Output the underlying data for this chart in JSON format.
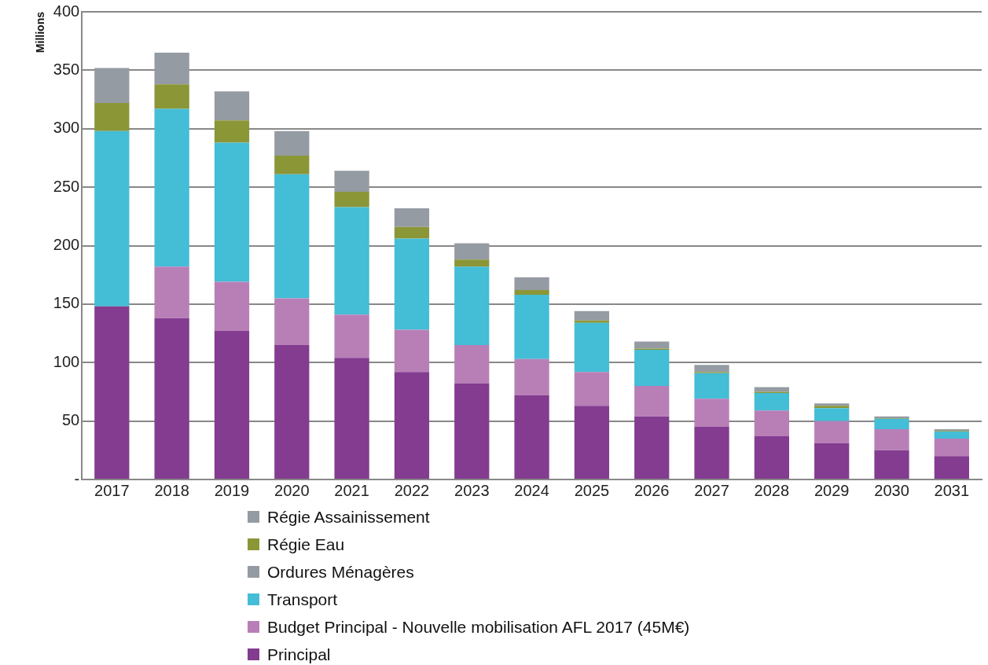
{
  "chart_data": {
    "type": "bar",
    "stacked": true,
    "ylabel": "Millions",
    "categories": [
      "2017",
      "2018",
      "2019",
      "2020",
      "2021",
      "2022",
      "2023",
      "2024",
      "2025",
      "2026",
      "2027",
      "2028",
      "2029",
      "2030",
      "2031"
    ],
    "series": [
      {
        "name": "Principal",
        "color": "#833c8f",
        "values": [
          148,
          138,
          127,
          115,
          104,
          92,
          82,
          72,
          63,
          54,
          45,
          37,
          31,
          25,
          20
        ]
      },
      {
        "name": "Budget Principal - Nouvelle mobilisation AFL 2017 (45M€)",
        "color": "#b87fb7",
        "values": [
          0,
          44,
          42,
          40,
          37,
          36,
          33,
          31,
          29,
          26,
          24,
          22,
          19,
          18,
          15
        ]
      },
      {
        "name": "Transport",
        "color": "#44bdd6",
        "values": [
          150,
          135,
          119,
          106,
          92,
          78,
          67,
          55,
          42,
          31,
          22,
          15,
          11,
          9,
          6
        ]
      },
      {
        "name": "Ordures Ménagères",
        "color": "#959ba2",
        "values": [
          null,
          null,
          null,
          null,
          null,
          null,
          null,
          null,
          null,
          null,
          null,
          null,
          null,
          null,
          null
        ]
      },
      {
        "name": "Régie Eau",
        "color": "#8b9637",
        "values": [
          24,
          21,
          19,
          16,
          13,
          10,
          6,
          4,
          2,
          1,
          1,
          1,
          2,
          0.5,
          0.5
        ]
      },
      {
        "name": "Régie Assainissement",
        "color": "#959ba2",
        "values": [
          30,
          27,
          25,
          21,
          18,
          16,
          14,
          11,
          8,
          6,
          6,
          4,
          2,
          1.5,
          1.5
        ]
      }
    ],
    "ylim": [
      0,
      400
    ],
    "yticks": [
      {
        "value": 0,
        "label": "-"
      },
      50,
      100,
      150,
      200,
      250,
      300,
      350,
      400
    ],
    "grid": "y",
    "legend": "bottom"
  }
}
